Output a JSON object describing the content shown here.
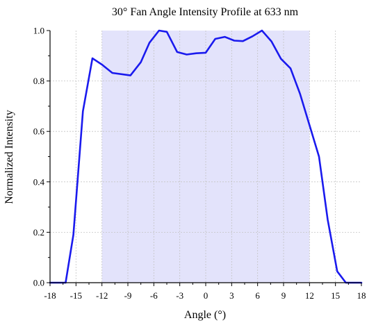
{
  "chart_data": {
    "type": "line",
    "title": "30° Fan Angle Intensity Profile at 633 nm",
    "xlabel": "Angle (°)",
    "ylabel": "Normalized Intensity",
    "xlim": [
      -18,
      18
    ],
    "ylim": [
      0,
      1.0
    ],
    "xticks": [
      "-18",
      "-15",
      "-12",
      "-9",
      "-6",
      "-3",
      "0",
      "3",
      "6",
      "9",
      "12",
      "15",
      "18"
    ],
    "yticks": [
      "0.0",
      "0.2",
      "0.4",
      "0.6",
      "0.8",
      "1.0"
    ],
    "grid": true,
    "shaded_region": {
      "x_start": -12,
      "x_end": 12,
      "color": "#e3e3fb"
    },
    "series": [
      {
        "color": "#1a1aee",
        "x": [
          -18,
          -16.2,
          -15.3,
          -14.2,
          -13.1,
          -12,
          -10.8,
          -8.7,
          -7.5,
          -6.5,
          -5.4,
          -4.5,
          -3.3,
          -2.2,
          -1.1,
          0,
          1.1,
          2.2,
          3.3,
          4.3,
          5.4,
          6.5,
          7.6,
          8.7,
          9.8,
          10.9,
          12,
          13.1,
          14.1,
          15.2,
          16.2,
          18
        ],
        "y": [
          0.0,
          0.0,
          0.19,
          0.68,
          0.89,
          0.865,
          0.832,
          0.822,
          0.875,
          0.952,
          1.0,
          0.995,
          0.915,
          0.905,
          0.91,
          0.912,
          0.967,
          0.975,
          0.96,
          0.958,
          0.977,
          1.0,
          0.957,
          0.888,
          0.85,
          0.75,
          0.625,
          0.5,
          0.25,
          0.045,
          0.0,
          0.0
        ]
      }
    ]
  }
}
